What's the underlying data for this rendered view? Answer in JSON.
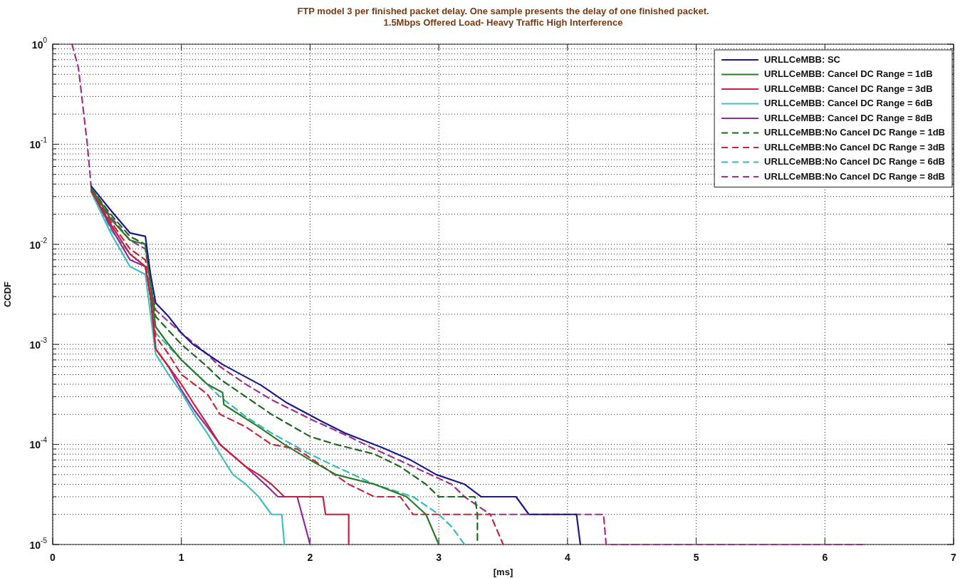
{
  "chart_data": {
    "type": "line",
    "title": "FTP model 3 per finished packet delay. One sample presents the delay of one finished packet.",
    "subtitle": "1.5Mbps Offered Load- Heavy Traffic High Interference",
    "xlabel": "[ms]",
    "ylabel": "CCDF",
    "xlim": [
      0,
      7
    ],
    "xticks": [
      0,
      1,
      2,
      3,
      4,
      5,
      6,
      7
    ],
    "ylim": [
      1e-05,
      1
    ],
    "log": "y",
    "yticks": [
      {
        "value": 1,
        "label": "10$^{0}$"
      },
      {
        "value": 0.1,
        "label": "10$^{-1}$"
      },
      {
        "value": 0.01,
        "label": "10$^{-2}$"
      },
      {
        "value": 0.001,
        "label": "10$^{-3}$"
      },
      {
        "value": 0.0001,
        "label": "10$^{-4}$"
      },
      {
        "value": 1e-05,
        "label": "10$^{-5}$"
      }
    ],
    "grid": true,
    "legend": "top right",
    "marker": "none",
    "series": [
      {
        "name": "URLLCeMBB: SC",
        "color": "#1a1a8c",
        "line_style": "solid",
        "x": [
          0.3,
          0.45,
          0.6,
          0.72,
          0.76,
          0.8,
          0.9,
          1.0,
          1.09,
          1.32,
          1.62,
          1.82,
          2.09,
          2.27,
          2.56,
          2.78,
          2.98,
          3.2,
          3.33,
          3.6,
          3.7,
          4.07,
          4.1
        ],
        "values": [
          0.038,
          0.022,
          0.013,
          0.012,
          0.005,
          0.0026,
          0.0019,
          0.0013,
          0.001,
          0.00063,
          0.00039,
          0.00026,
          0.00017,
          0.00013,
          9.3e-05,
          7e-05,
          5e-05,
          4e-05,
          3e-05,
          3e-05,
          2e-05,
          2e-05,
          1e-05
        ]
      },
      {
        "name": "URLLCeMBB: Cancel DC Range = 1dB",
        "color": "#2a7a2a",
        "line_style": "solid",
        "x": [
          0.3,
          0.45,
          0.6,
          0.72,
          0.76,
          0.8,
          0.9,
          1.0,
          1.2,
          1.32,
          1.33,
          1.6,
          1.8,
          2.0,
          2.2,
          2.5,
          2.75,
          2.9,
          3.0
        ],
        "values": [
          0.036,
          0.018,
          0.011,
          0.01,
          0.004,
          0.0015,
          0.001,
          0.0007,
          0.0004,
          0.00033,
          0.00025,
          0.00015,
          0.0001,
          7e-05,
          5e-05,
          4e-05,
          3e-05,
          2e-05,
          1e-05
        ]
      },
      {
        "name": "URLLCeMBB: Cancel DC Range = 3dB",
        "color": "#cc1f3a",
        "line_style": "solid",
        "x": [
          0.3,
          0.45,
          0.6,
          0.72,
          0.76,
          0.8,
          0.9,
          1.0,
          1.1,
          1.2,
          1.3,
          1.5,
          1.6,
          1.7,
          1.8,
          2.1,
          2.12,
          2.3,
          2.3
        ],
        "values": [
          0.034,
          0.016,
          0.008,
          0.006,
          0.003,
          0.0009,
          0.0006,
          0.0004,
          0.00025,
          0.00016,
          0.0001,
          6e-05,
          5e-05,
          4e-05,
          3e-05,
          3e-05,
          2e-05,
          2e-05,
          1e-05
        ]
      },
      {
        "name": "URLLCeMBB: Cancel DC Range = 6dB",
        "color": "#40c0c0",
        "line_style": "solid",
        "x": [
          0.3,
          0.45,
          0.6,
          0.72,
          0.76,
          0.8,
          0.9,
          1.0,
          1.1,
          1.2,
          1.3,
          1.4,
          1.5,
          1.6,
          1.7,
          1.78,
          1.8
        ],
        "values": [
          0.033,
          0.013,
          0.006,
          0.005,
          0.002,
          0.0008,
          0.0005,
          0.00033,
          0.0002,
          0.00013,
          8e-05,
          5e-05,
          4e-05,
          3e-05,
          2e-05,
          2e-05,
          1e-05
        ]
      },
      {
        "name": "URLLCeMBB: Cancel DC Range = 8dB",
        "color": "#8e2a9e",
        "line_style": "solid",
        "x": [
          0.3,
          0.45,
          0.6,
          0.72,
          0.76,
          0.8,
          0.9,
          1.0,
          1.1,
          1.2,
          1.3,
          1.5,
          1.65,
          1.75,
          1.9,
          2.0
        ],
        "values": [
          0.034,
          0.015,
          0.007,
          0.006,
          0.003,
          0.0009,
          0.0006,
          0.00035,
          0.00022,
          0.00015,
          0.0001,
          6e-05,
          4e-05,
          3e-05,
          3e-05,
          1e-05
        ]
      },
      {
        "name": "URLLCeMBB:No Cancel DC Range = 1dB",
        "color": "#1f6a1f",
        "line_style": "dashed",
        "x": [
          0.3,
          0.45,
          0.6,
          0.72,
          0.76,
          0.8,
          1.0,
          1.2,
          1.3,
          1.5,
          1.7,
          2.0,
          2.2,
          2.5,
          2.7,
          2.9,
          3.0,
          3.28,
          3.3,
          3.3
        ],
        "values": [
          0.036,
          0.02,
          0.012,
          0.01,
          0.004,
          0.0019,
          0.001,
          0.0006,
          0.00045,
          0.0003,
          0.0002,
          0.00012,
          0.0001,
          8e-05,
          6e-05,
          4e-05,
          3e-05,
          3e-05,
          2e-05,
          1e-05
        ]
      },
      {
        "name": "URLLCeMBB:No Cancel DC Range = 3dB",
        "color": "#c8283c",
        "line_style": "dashed",
        "x": [
          0.3,
          0.45,
          0.6,
          0.72,
          0.76,
          0.8,
          0.9,
          1.0,
          1.1,
          1.2,
          1.3,
          1.5,
          1.7,
          1.9,
          2.1,
          2.3,
          2.5,
          2.7,
          2.8,
          3.4,
          3.5
        ],
        "values": [
          0.035,
          0.017,
          0.009,
          0.007,
          0.003,
          0.0012,
          0.0008,
          0.0005,
          0.0004,
          0.00032,
          0.0002,
          0.00015,
          0.0001,
          9e-05,
          6e-05,
          4e-05,
          3e-05,
          3e-05,
          2e-05,
          2e-05,
          1e-05
        ]
      },
      {
        "name": "URLLCeMBB:No Cancel DC Range = 6dB",
        "color": "#38b8c0",
        "line_style": "dashed",
        "x": [
          0.3,
          0.45,
          0.6,
          0.72,
          0.76,
          0.8,
          1.0,
          1.2,
          1.3,
          1.5,
          1.7,
          2.0,
          2.2,
          2.5,
          2.8,
          3.0,
          3.1,
          3.2
        ],
        "values": [
          0.034,
          0.014,
          0.008,
          0.006,
          0.003,
          0.0013,
          0.0007,
          0.0004,
          0.0003,
          0.00019,
          0.00013,
          8e-05,
          6e-05,
          4e-05,
          3e-05,
          2e-05,
          1.5e-05,
          1e-05
        ]
      },
      {
        "name": "URLLCeMBB:No Cancel DC Range = 8dB",
        "color": "#a0308c",
        "line_style": "dashed",
        "x": [
          0.15,
          0.2,
          0.27,
          0.3,
          0.45,
          0.6,
          0.72,
          0.76,
          0.8,
          1.0,
          1.2,
          1.3,
          1.5,
          1.7,
          2.0,
          2.3,
          2.5,
          2.8,
          3.1,
          3.2,
          3.4,
          4.28,
          4.3,
          6.3
        ],
        "values": [
          1,
          0.58,
          0.097,
          0.036,
          0.019,
          0.011,
          0.009,
          0.004,
          0.0022,
          0.0013,
          0.0008,
          0.0006,
          0.0004,
          0.00028,
          0.00018,
          0.00012,
          9e-05,
          6e-05,
          4e-05,
          3e-05,
          2e-05,
          2e-05,
          1e-05,
          1e-05
        ]
      }
    ]
  }
}
